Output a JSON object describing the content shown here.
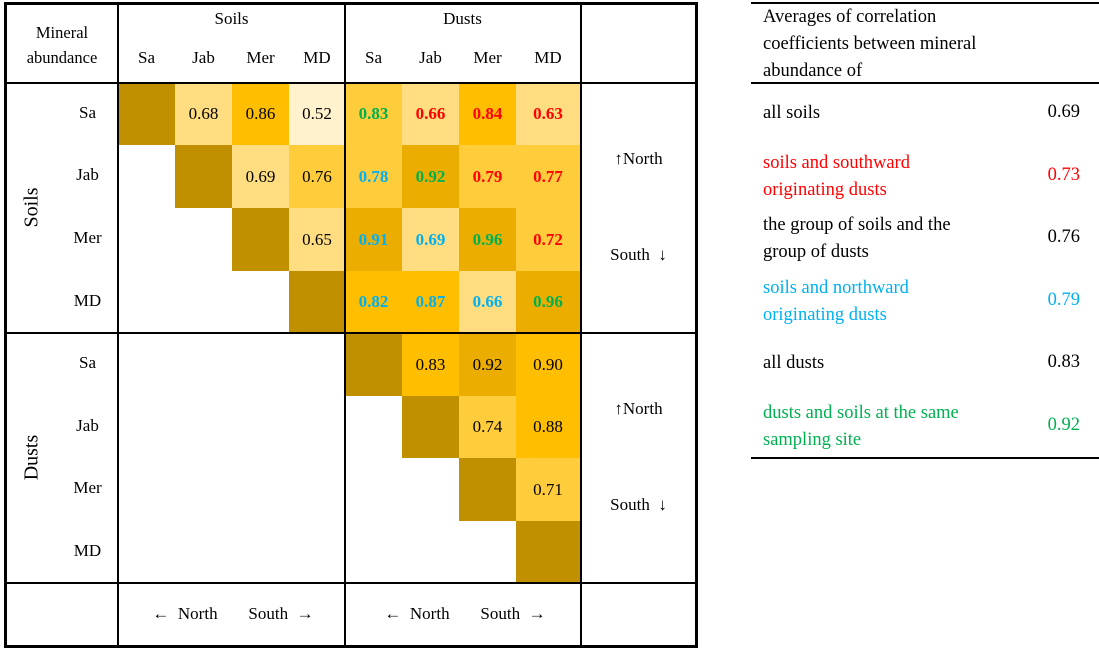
{
  "header": {
    "corner": "Mineral abundance",
    "soils_group": "Soils",
    "dusts_group": "Dusts",
    "sites": [
      "Sa",
      "Jab",
      "Mer",
      "MD"
    ]
  },
  "row_groups": [
    "Soils",
    "Dusts"
  ],
  "direction": {
    "up_north": "↑North",
    "south_down": "South  ↓",
    "left_north": "←  North",
    "south_right": "South  →"
  },
  "colors": {
    "diag": "#C09000",
    "L1": "#EAAD00",
    "L2": "#FFBE00",
    "L3": "#FFCD3C",
    "L4": "#FFDD80",
    "L5": "#FFF2CC",
    "red": "#FF0000",
    "blue": "#00B0F0",
    "green": "#00B050",
    "black": "#000000"
  },
  "cells": [
    {
      "r": 0,
      "c": 1,
      "v": "0.68",
      "bg": "L4",
      "fg": "black"
    },
    {
      "r": 0,
      "c": 2,
      "v": "0.86",
      "bg": "L2",
      "fg": "black"
    },
    {
      "r": 0,
      "c": 3,
      "v": "0.52",
      "bg": "L5",
      "fg": "black"
    },
    {
      "r": 0,
      "c": 4,
      "v": "0.83",
      "bg": "L3",
      "fg": "green"
    },
    {
      "r": 0,
      "c": 5,
      "v": "0.66",
      "bg": "L4",
      "fg": "red"
    },
    {
      "r": 0,
      "c": 6,
      "v": "0.84",
      "bg": "L2",
      "fg": "red"
    },
    {
      "r": 0,
      "c": 7,
      "v": "0.63",
      "bg": "L4",
      "fg": "red"
    },
    {
      "r": 1,
      "c": 2,
      "v": "0.69",
      "bg": "L4",
      "fg": "black"
    },
    {
      "r": 1,
      "c": 3,
      "v": "0.76",
      "bg": "L3",
      "fg": "black"
    },
    {
      "r": 1,
      "c": 4,
      "v": "0.78",
      "bg": "L3",
      "fg": "blue"
    },
    {
      "r": 1,
      "c": 5,
      "v": "0.92",
      "bg": "L1",
      "fg": "green"
    },
    {
      "r": 1,
      "c": 6,
      "v": "0.79",
      "bg": "L3",
      "fg": "red"
    },
    {
      "r": 1,
      "c": 7,
      "v": "0.77",
      "bg": "L3",
      "fg": "red"
    },
    {
      "r": 2,
      "c": 3,
      "v": "0.65",
      "bg": "L4",
      "fg": "black"
    },
    {
      "r": 2,
      "c": 4,
      "v": "0.91",
      "bg": "L1",
      "fg": "blue"
    },
    {
      "r": 2,
      "c": 5,
      "v": "0.69",
      "bg": "L4",
      "fg": "blue"
    },
    {
      "r": 2,
      "c": 6,
      "v": "0.96",
      "bg": "L1",
      "fg": "green"
    },
    {
      "r": 2,
      "c": 7,
      "v": "0.72",
      "bg": "L3",
      "fg": "red"
    },
    {
      "r": 3,
      "c": 4,
      "v": "0.82",
      "bg": "L2",
      "fg": "blue"
    },
    {
      "r": 3,
      "c": 5,
      "v": "0.87",
      "bg": "L2",
      "fg": "blue"
    },
    {
      "r": 3,
      "c": 6,
      "v": "0.66",
      "bg": "L4",
      "fg": "blue"
    },
    {
      "r": 3,
      "c": 7,
      "v": "0.96",
      "bg": "L1",
      "fg": "green"
    },
    {
      "r": 4,
      "c": 5,
      "v": "0.83",
      "bg": "L2",
      "fg": "black"
    },
    {
      "r": 4,
      "c": 6,
      "v": "0.92",
      "bg": "L1",
      "fg": "black"
    },
    {
      "r": 4,
      "c": 7,
      "v": "0.90",
      "bg": "L2",
      "fg": "black"
    },
    {
      "r": 5,
      "c": 6,
      "v": "0.74",
      "bg": "L3",
      "fg": "black"
    },
    {
      "r": 5,
      "c": 7,
      "v": "0.88",
      "bg": "L2",
      "fg": "black"
    },
    {
      "r": 6,
      "c": 7,
      "v": "0.71",
      "bg": "L3",
      "fg": "black"
    }
  ],
  "averages": {
    "title": "Averages of correlation coefficients between mineral abundance of",
    "rows": [
      {
        "label": "all soils",
        "value": "0.69",
        "color": "black"
      },
      {
        "label": "soils and southward originating dusts",
        "value": "0.73",
        "color": "red"
      },
      {
        "label": "the group of soils and the group of dusts",
        "value": "0.76",
        "color": "black"
      },
      {
        "label": "soils and northward originating dusts",
        "value": "0.79",
        "color": "blue"
      },
      {
        "label": "all dusts",
        "value": "0.83",
        "color": "black"
      },
      {
        "label": "dusts and soils at the same sampling site",
        "value": "0.92",
        "color": "green"
      }
    ]
  }
}
